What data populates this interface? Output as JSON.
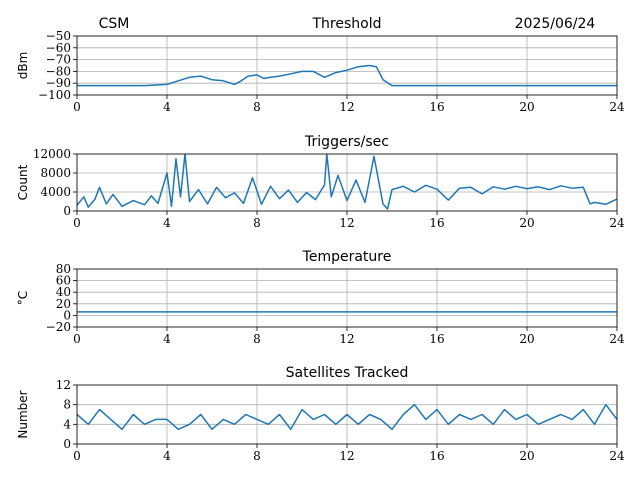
{
  "header": {
    "left": "CSM",
    "date": "2025/06/24"
  },
  "colors": {
    "series": "#1f77b4",
    "grid": "#b0b0b0"
  },
  "chart_data": [
    {
      "type": "line",
      "title": "Threshold",
      "xlabel": "",
      "ylabel": "dBm",
      "xlim": [
        0,
        24
      ],
      "ylim": [
        -100,
        -50
      ],
      "xticks": [
        0,
        4,
        8,
        12,
        16,
        20,
        24
      ],
      "yticks": [
        -50,
        -60,
        -70,
        -80,
        -90,
        -100
      ],
      "yticklabels": [
        "−50",
        "−60",
        "−70",
        "−80",
        "−90",
        "−100"
      ],
      "grid": true,
      "series": [
        {
          "x": [
            0,
            1,
            2,
            3,
            4,
            4.5,
            5,
            5.5,
            6,
            6.5,
            7,
            7.3,
            7.6,
            8,
            8.3,
            8.6,
            9,
            9.5,
            10,
            10.5,
            11,
            11.5,
            12,
            12.5,
            13,
            13.3,
            13.6,
            14,
            16,
            18,
            20,
            22,
            24
          ],
          "y": [
            -92,
            -92,
            -92,
            -92,
            -91,
            -88,
            -85,
            -84,
            -87,
            -88,
            -91,
            -88,
            -84,
            -83,
            -86,
            -85,
            -84,
            -82,
            -80,
            -80,
            -85,
            -81,
            -79,
            -76,
            -75,
            -76,
            -87,
            -92,
            -92,
            -92,
            -92,
            -92,
            -92
          ]
        }
      ]
    },
    {
      "type": "line",
      "title": "Triggers/sec",
      "xlabel": "",
      "ylabel": "Count",
      "xlim": [
        0,
        24
      ],
      "ylim": [
        0,
        12000
      ],
      "xticks": [
        0,
        4,
        8,
        12,
        16,
        20,
        24
      ],
      "yticks": [
        0,
        4000,
        8000,
        12000
      ],
      "yticklabels": [
        "0",
        "4000",
        "8000",
        "12000"
      ],
      "grid": true,
      "series": [
        {
          "x": [
            0,
            0.3,
            0.5,
            0.8,
            1,
            1.3,
            1.6,
            2,
            2.5,
            3,
            3.3,
            3.6,
            4,
            4.2,
            4.4,
            4.6,
            4.8,
            5,
            5.4,
            5.8,
            6.2,
            6.6,
            7,
            7.4,
            7.8,
            8.2,
            8.6,
            9,
            9.4,
            9.8,
            10.2,
            10.6,
            11,
            11.1,
            11.3,
            11.6,
            12,
            12.4,
            12.8,
            13.2,
            13.6,
            13.8,
            14,
            14.5,
            15,
            15.5,
            16,
            16.5,
            17,
            17.5,
            18,
            18.5,
            19,
            19.5,
            20,
            20.5,
            21,
            21.5,
            22,
            22.5,
            22.8,
            23,
            23.5,
            24
          ],
          "y": [
            1200,
            3000,
            800,
            2500,
            5000,
            1500,
            3500,
            1000,
            2200,
            1300,
            3200,
            1600,
            8000,
            1000,
            11000,
            3000,
            12000,
            2000,
            4500,
            1500,
            5000,
            2800,
            3800,
            1600,
            7000,
            1400,
            5200,
            2600,
            4400,
            1800,
            3900,
            2400,
            5500,
            12000,
            3000,
            7500,
            2200,
            6500,
            1800,
            11500,
            1500,
            400,
            4500,
            5200,
            4000,
            5400,
            4600,
            2300,
            4800,
            5000,
            3600,
            5100,
            4600,
            5200,
            4700,
            5100,
            4500,
            5300,
            4800,
            5000,
            1500,
            1800,
            1400,
            2500
          ]
        }
      ]
    },
    {
      "type": "line",
      "title": "Temperature",
      "xlabel": "",
      "ylabel": "°C",
      "xlim": [
        0,
        24
      ],
      "ylim": [
        -20,
        80
      ],
      "xticks": [
        0,
        4,
        8,
        12,
        16,
        20,
        24
      ],
      "yticks": [
        -20,
        0,
        20,
        40,
        60,
        80
      ],
      "yticklabels": [
        "−20",
        "0",
        "20",
        "40",
        "60",
        "80"
      ],
      "grid": true,
      "series": [
        {
          "x": [
            0,
            24
          ],
          "y": [
            6,
            6
          ]
        }
      ]
    },
    {
      "type": "line",
      "title": "Satellites Tracked",
      "xlabel": "",
      "ylabel": "Number",
      "xlim": [
        0,
        24
      ],
      "ylim": [
        0,
        12
      ],
      "xticks": [
        0,
        4,
        8,
        12,
        16,
        20,
        24
      ],
      "yticks": [
        0,
        4,
        8,
        12
      ],
      "yticklabels": [
        "0",
        "4",
        "8",
        "12"
      ],
      "grid": true,
      "series": [
        {
          "x": [
            0,
            0.5,
            1,
            1.5,
            2,
            2.5,
            3,
            3.5,
            4,
            4.5,
            5,
            5.5,
            6,
            6.5,
            7,
            7.5,
            8,
            8.5,
            9,
            9.5,
            10,
            10.5,
            11,
            11.5,
            12,
            12.5,
            13,
            13.5,
            14,
            14.5,
            15,
            15.5,
            16,
            16.5,
            17,
            17.5,
            18,
            18.5,
            19,
            19.5,
            20,
            20.5,
            21,
            21.5,
            22,
            22.5,
            23,
            23.5,
            24
          ],
          "y": [
            6,
            4,
            7,
            5,
            3,
            6,
            4,
            5,
            5,
            3,
            4,
            6,
            3,
            5,
            4,
            6,
            5,
            4,
            6,
            3,
            7,
            5,
            6,
            4,
            6,
            4,
            6,
            5,
            3,
            6,
            8,
            5,
            7,
            4,
            6,
            5,
            6,
            4,
            7,
            5,
            6,
            4,
            5,
            6,
            5,
            7,
            4,
            8,
            5
          ]
        }
      ]
    }
  ]
}
